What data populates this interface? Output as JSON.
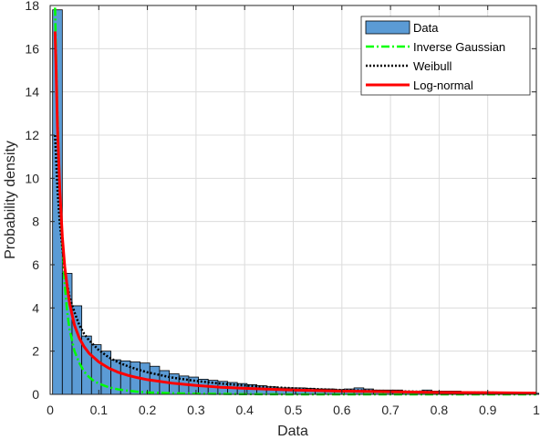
{
  "chart_data": {
    "type": "bar",
    "title": "",
    "xlabel": "Data",
    "ylabel": "Probability density",
    "xlim": [
      0,
      1
    ],
    "ylim": [
      0,
      18
    ],
    "xticks": [
      0,
      0.1,
      0.2,
      0.3,
      0.4,
      0.5,
      0.6,
      0.7,
      0.8,
      0.9,
      1
    ],
    "xtick_labels": [
      "0",
      "0.1",
      "0.2",
      "0.3",
      "0.4",
      "0.5",
      "0.6",
      "0.7",
      "0.8",
      "0.9",
      "1"
    ],
    "yticks": [
      0,
      2,
      4,
      6,
      8,
      10,
      12,
      14,
      16,
      18
    ],
    "ytick_labels": [
      "0",
      "2",
      "4",
      "6",
      "8",
      "10",
      "12",
      "14",
      "16",
      "18"
    ],
    "grid": true,
    "legend_position": "top-right",
    "histogram": {
      "name": "Data",
      "color": "#5b9bd5",
      "bin_width": 0.02,
      "bin_starts": [
        0.005,
        0.025,
        0.045,
        0.065,
        0.085,
        0.105,
        0.125,
        0.145,
        0.165,
        0.185,
        0.205,
        0.225,
        0.245,
        0.265,
        0.285,
        0.305,
        0.325,
        0.345,
        0.365,
        0.385,
        0.405,
        0.425,
        0.445,
        0.465,
        0.485,
        0.505,
        0.525,
        0.545,
        0.565,
        0.585,
        0.605,
        0.625,
        0.645,
        0.665,
        0.685,
        0.705,
        0.725,
        0.745,
        0.765,
        0.785,
        0.805,
        0.825,
        0.845,
        0.865,
        0.885,
        0.905,
        0.925,
        0.945,
        0.965,
        0.985
      ],
      "values": [
        17.8,
        5.6,
        4.1,
        2.7,
        2.3,
        2.0,
        1.6,
        1.55,
        1.5,
        1.45,
        1.3,
        1.1,
        0.95,
        0.85,
        0.8,
        0.7,
        0.65,
        0.6,
        0.55,
        0.5,
        0.45,
        0.4,
        0.35,
        0.3,
        0.3,
        0.3,
        0.28,
        0.25,
        0.25,
        0.22,
        0.25,
        0.3,
        0.25,
        0.2,
        0.2,
        0.2,
        0.15,
        0.15,
        0.2,
        0.15,
        0.15,
        0.15,
        0.1,
        0.1,
        0.1,
        0.1,
        0.1,
        0.1,
        0.05,
        0.05
      ]
    },
    "series": [
      {
        "name": "Inverse Gaussian",
        "color": "#00ff00",
        "style": "dashdot",
        "x": [
          0.01,
          0.015,
          0.02,
          0.025,
          0.03,
          0.035,
          0.04,
          0.05,
          0.06,
          0.07,
          0.08,
          0.09,
          0.1,
          0.12,
          0.14,
          0.16,
          0.18,
          0.2,
          0.25,
          0.3,
          0.35,
          0.4,
          0.5,
          0.6,
          0.7,
          0.8,
          1.0
        ],
        "y": [
          17.9,
          13.0,
          9.4,
          6.9,
          5.1,
          3.8,
          3.0,
          2.0,
          1.45,
          1.05,
          0.8,
          0.62,
          0.5,
          0.33,
          0.23,
          0.17,
          0.12,
          0.09,
          0.05,
          0.03,
          0.02,
          0.01,
          0.0,
          0.0,
          0.0,
          0.0,
          0.0
        ]
      },
      {
        "name": "Weibull",
        "color": "#000000",
        "style": "dotted",
        "x": [
          0.01,
          0.015,
          0.02,
          0.03,
          0.04,
          0.05,
          0.06,
          0.07,
          0.08,
          0.1,
          0.12,
          0.14,
          0.16,
          0.18,
          0.2,
          0.25,
          0.3,
          0.35,
          0.4,
          0.45,
          0.5,
          0.6,
          0.7,
          0.8,
          0.9,
          1.0
        ],
        "y": [
          12.0,
          9.5,
          7.9,
          5.7,
          4.5,
          3.8,
          3.2,
          2.8,
          2.5,
          2.05,
          1.72,
          1.48,
          1.3,
          1.15,
          1.02,
          0.78,
          0.62,
          0.5,
          0.41,
          0.34,
          0.28,
          0.2,
          0.15,
          0.11,
          0.08,
          0.06
        ]
      },
      {
        "name": "Log-normal",
        "color": "#ff0000",
        "style": "solid",
        "x": [
          0.01,
          0.012,
          0.015,
          0.02,
          0.025,
          0.03,
          0.035,
          0.04,
          0.05,
          0.06,
          0.07,
          0.08,
          0.1,
          0.12,
          0.14,
          0.16,
          0.18,
          0.2,
          0.25,
          0.3,
          0.35,
          0.4,
          0.5,
          0.6,
          0.7,
          0.8,
          0.9,
          1.0
        ],
        "y": [
          16.8,
          15.2,
          12.4,
          9.4,
          7.3,
          5.9,
          5.0,
          4.2,
          3.2,
          2.6,
          2.2,
          1.9,
          1.5,
          1.22,
          1.02,
          0.88,
          0.77,
          0.68,
          0.52,
          0.41,
          0.33,
          0.28,
          0.2,
          0.15,
          0.12,
          0.09,
          0.08,
          0.06
        ]
      }
    ]
  }
}
